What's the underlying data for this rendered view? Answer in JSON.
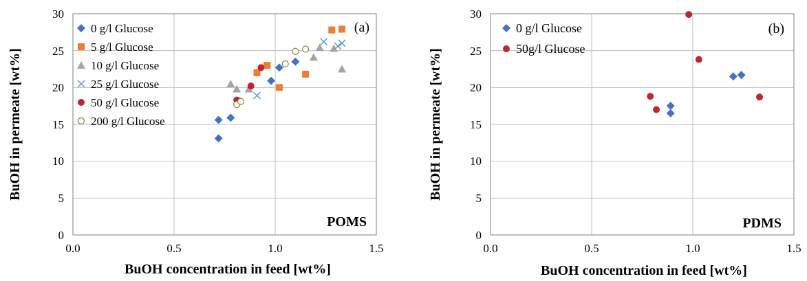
{
  "chart_data": [
    {
      "type": "scatter",
      "panel_label": "(a)",
      "membrane_label": "POMS",
      "xlabel": "BuOH concentration  in feed [wt%]",
      "ylabel": "BuOH in permeate  [wt%]",
      "xlim": [
        0,
        1.5
      ],
      "ylim": [
        0,
        30
      ],
      "xticks": [
        "0.0",
        "0.5",
        "1.0",
        "1.5"
      ],
      "yticks": [
        "0",
        "5",
        "10",
        "15",
        "20",
        "25",
        "30"
      ],
      "grid": true,
      "legend_position": "top-left",
      "series": [
        {
          "name": "0 g/l Glucose",
          "marker": "diamond",
          "color": "#4472C4",
          "points": [
            [
              0.72,
              13.1
            ],
            [
              0.72,
              15.6
            ],
            [
              0.78,
              15.9
            ],
            [
              0.98,
              20.9
            ],
            [
              1.02,
              22.7
            ],
            [
              1.1,
              23.5
            ]
          ]
        },
        {
          "name": "5 g/l Glucose",
          "marker": "square",
          "color": "#ED7D31",
          "points": [
            [
              0.91,
              22.0
            ],
            [
              0.96,
              23.0
            ],
            [
              1.02,
              20.0
            ],
            [
              1.15,
              21.8
            ],
            [
              1.28,
              27.8
            ],
            [
              1.33,
              27.9
            ]
          ]
        },
        {
          "name": "10 g/l Glucose",
          "marker": "triangle",
          "color": "#A5A5A5",
          "points": [
            [
              0.78,
              20.5
            ],
            [
              0.81,
              19.8
            ],
            [
              0.87,
              19.8
            ],
            [
              1.19,
              24.1
            ],
            [
              1.22,
              25.4
            ],
            [
              1.29,
              25.3
            ],
            [
              1.33,
              22.5
            ]
          ]
        },
        {
          "name": "25 g/l Glucose",
          "marker": "x",
          "color": "#5B9BD5",
          "points": [
            [
              0.91,
              18.9
            ],
            [
              1.24,
              26.2
            ],
            [
              1.31,
              25.6
            ],
            [
              1.33,
              26.0
            ]
          ]
        },
        {
          "name": "50 g/l Glucose",
          "marker": "circle",
          "color": "#C0272D",
          "points": [
            [
              0.81,
              18.3
            ],
            [
              0.82,
              18.2
            ],
            [
              0.88,
              20.2
            ],
            [
              0.93,
              22.7
            ]
          ]
        },
        {
          "name": "200 g/l Glucose",
          "marker": "open-circle",
          "color": "#7F8C3A",
          "points": [
            [
              0.81,
              17.7
            ],
            [
              0.83,
              18.1
            ],
            [
              1.05,
              23.2
            ],
            [
              1.1,
              24.9
            ],
            [
              1.15,
              25.2
            ]
          ]
        }
      ]
    },
    {
      "type": "scatter",
      "panel_label": "(b)",
      "membrane_label": "PDMS",
      "xlabel": "BuOH concentration  in feed [wt%]",
      "ylabel": "BuOH in permeate  [wt%]",
      "xlim": [
        0,
        1.5
      ],
      "ylim": [
        0,
        30
      ],
      "xticks": [
        "0.0",
        "0.5",
        "1.0",
        "1.5"
      ],
      "yticks": [
        "0",
        "5",
        "10",
        "15",
        "20",
        "25",
        "30"
      ],
      "grid": true,
      "legend_position": "top-left",
      "series": [
        {
          "name": "0 g/l Glucose",
          "marker": "diamond",
          "color": "#4472C4",
          "points": [
            [
              0.89,
              16.5
            ],
            [
              0.89,
              17.5
            ],
            [
              1.2,
              21.5
            ],
            [
              1.24,
              21.7
            ]
          ]
        },
        {
          "name": "50g/l Glucose",
          "marker": "circle",
          "color": "#C0272D",
          "points": [
            [
              0.79,
              18.8
            ],
            [
              0.82,
              17.0
            ],
            [
              0.98,
              29.9
            ],
            [
              1.03,
              23.8
            ],
            [
              1.33,
              18.7
            ]
          ]
        }
      ]
    }
  ]
}
